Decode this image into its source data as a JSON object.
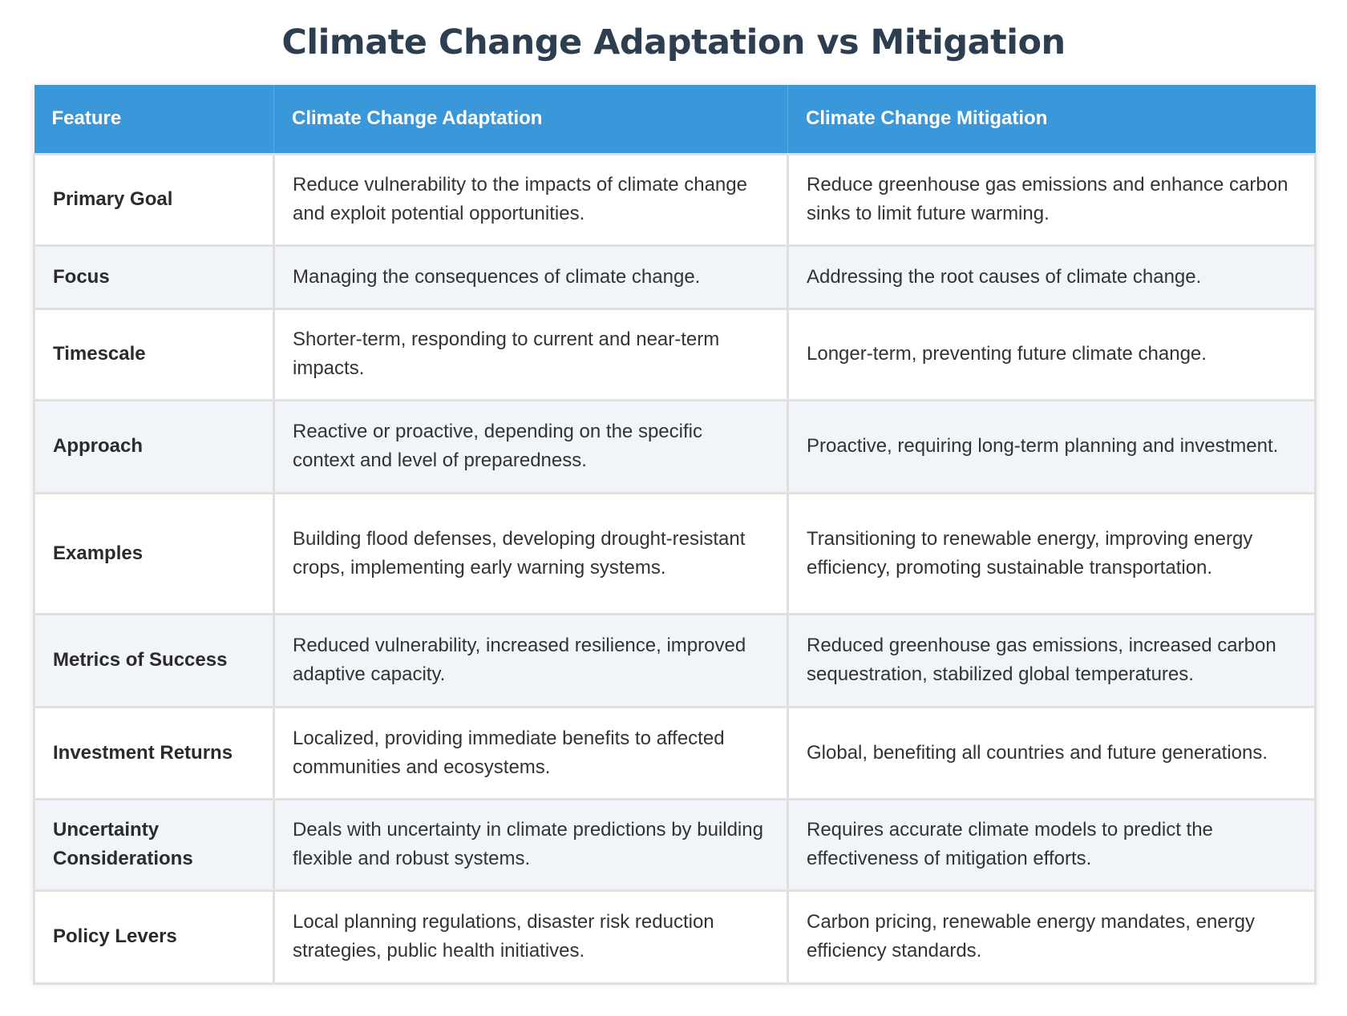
{
  "title": "Climate Change Adaptation vs Mitigation",
  "colors": {
    "header_background": "#3a97d9",
    "header_text": "#ffffff",
    "title_text": "#2c3e50",
    "alt_row": "#f1f4f8"
  },
  "table": {
    "headers": [
      "Feature",
      "Climate Change Adaptation",
      "Climate Change Mitigation"
    ],
    "rows": [
      {
        "feature": "Primary Goal",
        "adaptation": "Reduce vulnerability to the impacts of climate change and exploit potential opportunities.",
        "mitigation": "Reduce greenhouse gas emissions and enhance carbon sinks to limit future warming."
      },
      {
        "feature": "Focus",
        "adaptation": "Managing the consequences of climate change.",
        "mitigation": "Addressing the root causes of climate change."
      },
      {
        "feature": "Timescale",
        "adaptation": "Shorter-term, responding to current and near-term impacts.",
        "mitigation": "Longer-term, preventing future climate change."
      },
      {
        "feature": "Approach",
        "adaptation": "Reactive or proactive, depending on the specific context and level of preparedness.",
        "mitigation": "Proactive, requiring long-term planning and investment."
      },
      {
        "feature": "Examples",
        "adaptation": "Building flood defenses, developing drought-resistant crops, implementing early warning systems.",
        "mitigation": "Transitioning to renewable energy, improving energy efficiency, promoting sustainable transportation."
      },
      {
        "feature": "Metrics of Success",
        "adaptation": "Reduced vulnerability, increased resilience, improved adaptive capacity.",
        "mitigation": "Reduced greenhouse gas emissions, increased carbon sequestration, stabilized global temperatures."
      },
      {
        "feature": "Investment Returns",
        "adaptation": "Localized, providing immediate benefits to affected communities and ecosystems.",
        "mitigation": "Global, benefiting all countries and future generations."
      },
      {
        "feature": "Uncertainty Considerations",
        "adaptation": "Deals with uncertainty in climate predictions by building flexible and robust systems.",
        "mitigation": "Requires accurate climate models to predict the effectiveness of mitigation efforts."
      },
      {
        "feature": "Policy Levers",
        "adaptation": "Local planning regulations, disaster risk reduction strategies, public health initiatives.",
        "mitigation": "Carbon pricing, renewable energy mandates, energy efficiency standards."
      }
    ]
  }
}
